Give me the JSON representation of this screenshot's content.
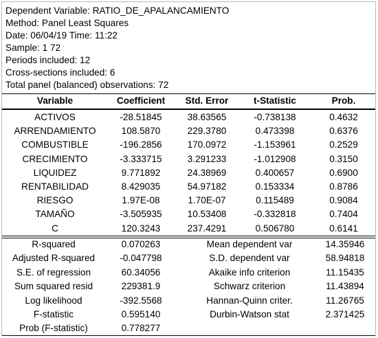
{
  "header": {
    "lines": [
      "Dependent Variable: RATIO_DE_APALANCAMIENTO",
      "Method: Panel Least Squares",
      "Date: 06/04/19   Time: 11:22",
      "Sample: 1 72",
      "Periods included: 12",
      "Cross-sections included: 6",
      "Total panel (balanced) observations: 72"
    ]
  },
  "coef_table": {
    "columns": [
      "Variable",
      "Coefficient",
      "Std. Error",
      "t-Statistic",
      "Prob."
    ],
    "rows": [
      [
        "ACTIVOS",
        "-28.51845",
        "38.63565",
        "-0.738138",
        "0.4632"
      ],
      [
        "ARRENDAMIENTO",
        "108.5870",
        "229.3780",
        "0.473398",
        "0.6376"
      ],
      [
        "COMBUSTIBLE",
        "-196.2856",
        "170.0972",
        "-1.153961",
        "0.2529"
      ],
      [
        "CRECIMIENTO",
        "-3.333715",
        "3.291233",
        "-1.012908",
        "0.3150"
      ],
      [
        "LIQUIDEZ",
        "9.771892",
        "24.38969",
        "0.400657",
        "0.6900"
      ],
      [
        "RENTABILIDAD",
        "8.429035",
        "54.97182",
        "0.153334",
        "0.8786"
      ],
      [
        "RIESGO",
        "1.97E-08",
        "1.70E-07",
        "0.115489",
        "0.9084"
      ],
      [
        "TAMAÑO",
        "-3.505935",
        "10.53408",
        "-0.332818",
        "0.7404"
      ],
      [
        "C",
        "120.3243",
        "237.4291",
        "0.506780",
        "0.6141"
      ]
    ]
  },
  "stats": {
    "left": [
      [
        "R-squared",
        "0.070263"
      ],
      [
        "Adjusted R-squared",
        "-0.047798"
      ],
      [
        "S.E. of regression",
        "60.34056"
      ],
      [
        "Sum squared resid",
        "229381.9"
      ],
      [
        "Log likelihood",
        "-392.5568"
      ],
      [
        "F-statistic",
        "0.595140"
      ],
      [
        "Prob (F-statistic)",
        "0.778277"
      ]
    ],
    "right": [
      [
        "Mean dependent var",
        "14.35946"
      ],
      [
        "S.D. dependent var",
        "58.94818"
      ],
      [
        "Akaike info criterion",
        "11.15435"
      ],
      [
        "Schwarz criterion",
        "11.43894"
      ],
      [
        "Hannan-Quinn criter.",
        "11.26765"
      ],
      [
        "Durbin-Watson stat",
        "2.371425"
      ]
    ]
  }
}
